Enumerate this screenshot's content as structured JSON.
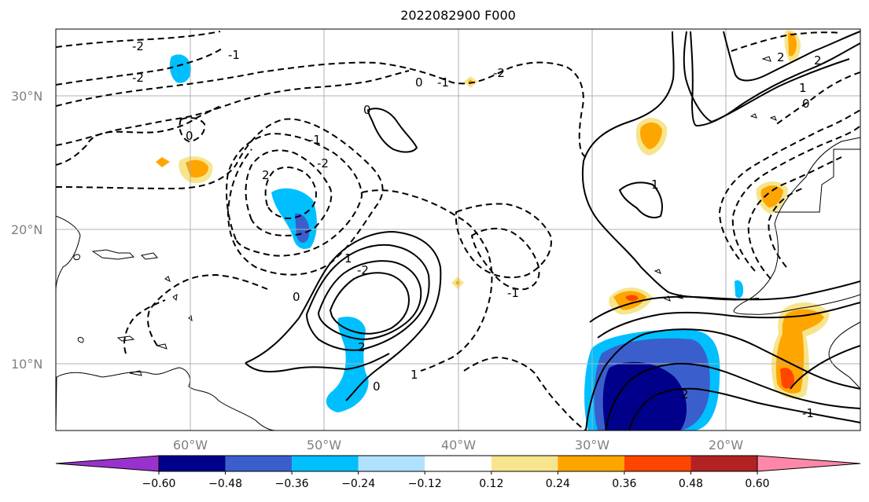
{
  "title": "2022082900 F000",
  "map": {
    "lon_labels": [
      "60°W",
      "50°W",
      "40°W",
      "30°W",
      "20°W"
    ],
    "lat_labels": [
      "30°N",
      "20°N",
      "10°N"
    ],
    "extent": {
      "lon": [
        -70,
        -10
      ],
      "lat": [
        5,
        35
      ]
    },
    "contour_labels": [
      "-2",
      "-2",
      "-1",
      "0",
      "-1",
      "-2",
      "0",
      "-1",
      "-2",
      "0",
      "2",
      "1",
      "0",
      "-2",
      "1",
      "-1",
      "0",
      "2",
      "1",
      "2",
      "2",
      "1",
      "2",
      "0",
      "-1"
    ],
    "gridlines": true
  },
  "colorbar": {
    "ticks": [
      "−0.60",
      "−0.48",
      "−0.36",
      "−0.24",
      "−0.12",
      "0.12",
      "0.24",
      "0.36",
      "0.48",
      "0.60"
    ],
    "colors": [
      "#9932cc",
      "#00008b",
      "#3a5fcd",
      "#00bfff",
      "#b0e2ff",
      "#ffffff",
      "#f6e58d",
      "#ffa500",
      "#ff4500",
      "#b22222",
      "#ff88aa"
    ]
  }
}
